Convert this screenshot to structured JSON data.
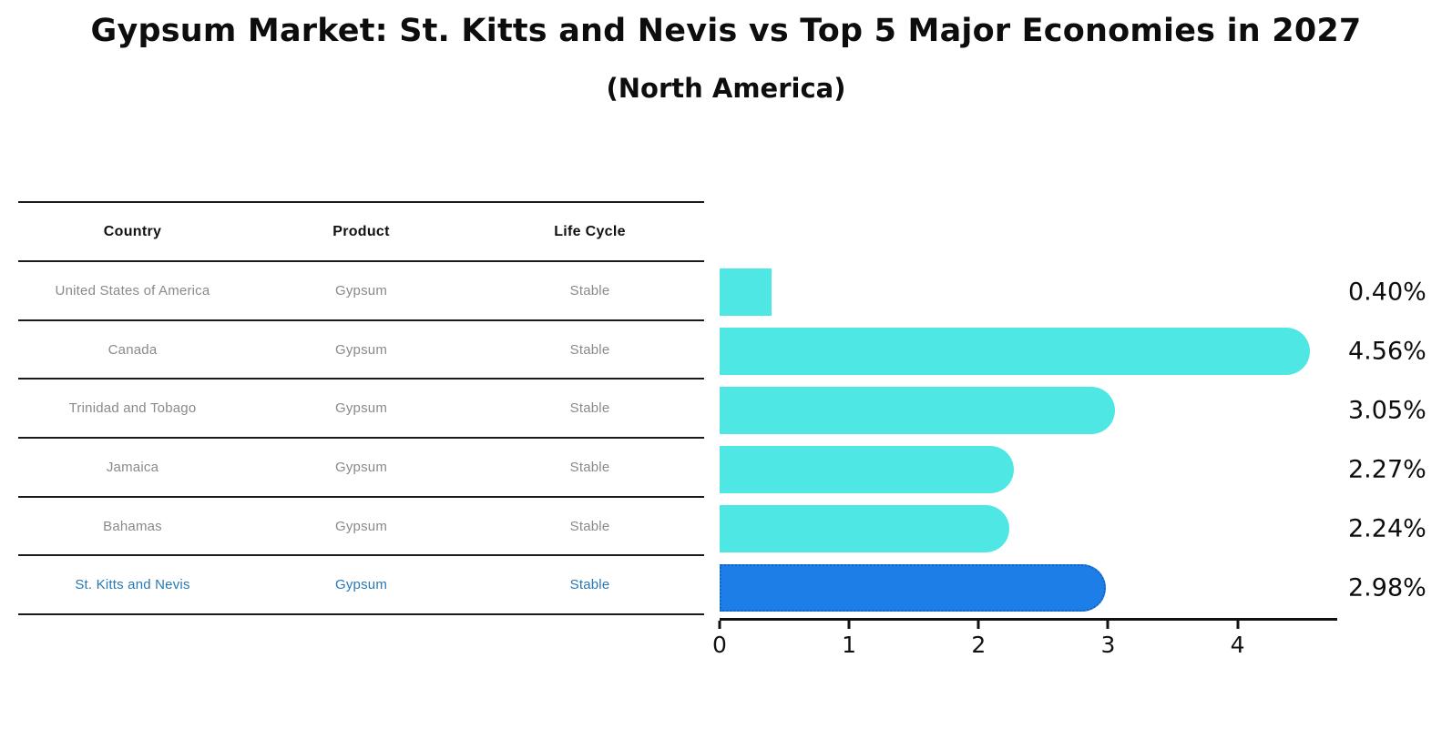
{
  "title": "Gypsum Market: St. Kitts and Nevis vs Top 5 Major Economies in 2027",
  "subtitle": "(North America)",
  "table": {
    "headers": [
      "Country",
      "Product",
      "Life Cycle"
    ],
    "rows": [
      {
        "country": "United States of America",
        "product": "Gypsum",
        "life_cycle": "Stable",
        "highlight": false
      },
      {
        "country": "Canada",
        "product": "Gypsum",
        "life_cycle": "Stable",
        "highlight": false
      },
      {
        "country": "Trinidad and Tobago",
        "product": "Gypsum",
        "life_cycle": "Stable",
        "highlight": false
      },
      {
        "country": "Jamaica",
        "product": "Gypsum",
        "life_cycle": "Stable",
        "highlight": false
      },
      {
        "country": "Bahamas",
        "product": "Gypsum",
        "life_cycle": "Stable",
        "highlight": false
      },
      {
        "country": "St. Kitts and Nevis",
        "product": "Gypsum",
        "life_cycle": "Stable",
        "highlight": true
      }
    ]
  },
  "chart_data": {
    "type": "bar",
    "orientation": "horizontal",
    "title": "Gypsum Market: St. Kitts and Nevis vs Top 5 Major Economies in 2027",
    "subtitle": "(North America)",
    "categories": [
      "United States of America",
      "Canada",
      "Trinidad and Tobago",
      "Jamaica",
      "Bahamas",
      "St. Kitts and Nevis"
    ],
    "values": [
      0.4,
      4.56,
      3.05,
      2.27,
      2.24,
      2.98
    ],
    "value_labels": [
      "0.40%",
      "4.56%",
      "3.05%",
      "2.27%",
      "2.24%",
      "2.98%"
    ],
    "xlabel": "",
    "ylabel": "",
    "xticks": [
      0,
      1,
      2,
      3,
      4
    ],
    "xlim": [
      0,
      4.77
    ],
    "grid": false,
    "legend": false,
    "highlight_index": 5,
    "bar_color": "#4EE7E3",
    "highlight_bar_color": "#1E7EE8",
    "highlight_border_color": "#1565C0",
    "highlight_text_color": "#2779B5"
  }
}
